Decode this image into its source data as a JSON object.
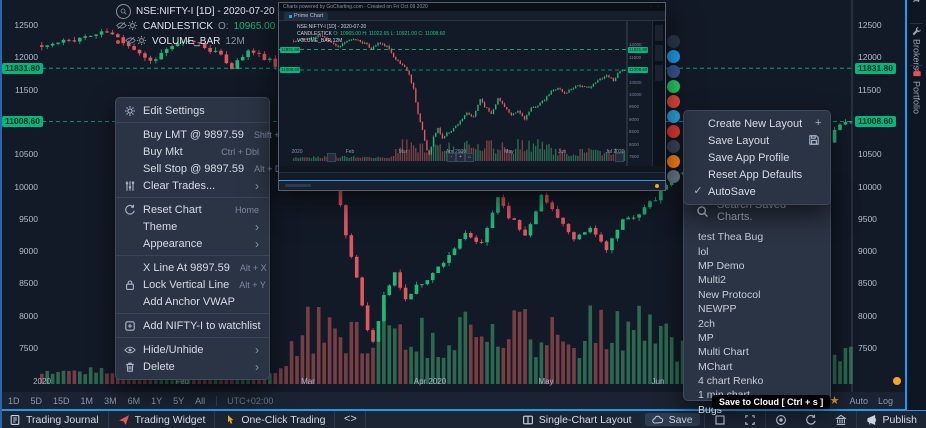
{
  "legend": {
    "symbol_line": "NSE:NIFTY-I [1D] - 2020-07-20",
    "study1_name": "CANDLESTICK",
    "o_label": "O:",
    "o_value": "10965.00",
    "h_label": "H:",
    "h_value": "11022.65",
    "l_label": "L:",
    "l_value": "10921.00",
    "c_label": "C:",
    "c_value": "11008.60",
    "study2_name": "VOLUME_BAR",
    "study2_value": "12M"
  },
  "context_menu": {
    "sections": [
      [
        {
          "icon": "gear",
          "label": "Edit Settings"
        }
      ],
      [
        {
          "label": "Buy LMT @ 9897.59",
          "shortcut": "Shift + Dbl"
        },
        {
          "label": "Buy Mkt",
          "shortcut": "Ctrl + Dbl"
        },
        {
          "label": "Sell Stop @ 9897.59",
          "shortcut": "Alt + Dbl"
        },
        {
          "icon": "sliders",
          "label": "Clear Trades...",
          "submenu": true
        }
      ],
      [
        {
          "icon": "sync",
          "label": "Reset Chart",
          "shortcut": "Home"
        },
        {
          "label": "Theme",
          "submenu": true
        },
        {
          "label": "Appearance",
          "submenu": true
        }
      ],
      [
        {
          "label": "X Line At 9897.59",
          "shortcut": "Alt + X"
        },
        {
          "icon": "lock",
          "label": "Lock Vertical Line",
          "shortcut": "Alt + Y"
        },
        {
          "label": "Add Anchor VWAP"
        }
      ],
      [
        {
          "icon": "watchlist-add",
          "label": "Add NIFTY-I to watchlist"
        }
      ],
      [
        {
          "icon": "eye",
          "label": "Hide/Unhide",
          "submenu": true
        },
        {
          "icon": "trash",
          "label": "Delete",
          "submenu": true
        }
      ]
    ]
  },
  "layout_menu": {
    "items": [
      {
        "label": "Create New Layout",
        "right_icon": "plus"
      },
      {
        "label": "Save Layout",
        "right_icon": "floppy"
      },
      {
        "label": "Save App Profile"
      },
      {
        "label": "Reset App Defaults"
      },
      {
        "label": "AutoSave",
        "checked": true
      }
    ]
  },
  "saved_charts": {
    "search_label": "Search Saved Charts.",
    "items": [
      "test Thea Bug",
      "lol",
      "MP Demo",
      "Multi2",
      "New Protocol",
      "NEWPP",
      "2ch",
      "MP",
      "Multi Chart",
      "MChart",
      "4 chart Renko",
      "1 min chart",
      "Bugs"
    ]
  },
  "share_buttons": [
    {
      "name": "stocktwits",
      "color": "#2c3a4e"
    },
    {
      "name": "twitter",
      "color": "#1da1f2"
    },
    {
      "name": "facebook",
      "color": "#3b5998"
    },
    {
      "name": "whatsapp",
      "color": "#25d366"
    },
    {
      "name": "pinterest",
      "color": "#e74c3c"
    },
    {
      "name": "telegram",
      "color": "#2aa9e0"
    },
    {
      "name": "youtube",
      "color": "#e53935"
    },
    {
      "name": "tumblr",
      "color": "#36465d"
    },
    {
      "name": "reddit",
      "color": "#ff8216"
    },
    {
      "name": "email",
      "color": "#64798a"
    }
  ],
  "preview_popup": {
    "watermark": "Charts powered by GoCharting.com - Created on Fri Oct 09 2020",
    "tab_label": "Prime Chart",
    "legend1": "NSE:NIFTY-I [1D] - 2020-07-20",
    "legend2_name": "CANDLESTICK",
    "legend2_values": "O: 10965.00 H: 11022.65 L: 10921.00 C: 11008.60",
    "legend3": "VOLUME_BAR 12M",
    "months": [
      "2020",
      "Feb",
      "Mar",
      "Apr 2020",
      "May",
      "Jun",
      "Jul 2020"
    ],
    "tags": [
      "11831.80",
      "11008.60"
    ],
    "zoom_controls": [
      "-",
      "+",
      "⌂"
    ]
  },
  "tooltip": {
    "text": "Save to Cloud [ Ctrl + s ]"
  },
  "timeframe_bar": {
    "ranges": [
      "1D",
      "5D",
      "15D",
      "1M",
      "3M",
      "6M",
      "1Y",
      "5Y",
      "All"
    ],
    "timezone": "UTC+02:00",
    "auto_label": "Auto",
    "log_label": "Log"
  },
  "bottom_bar": {
    "left": [
      {
        "icon": "journal",
        "label": "Trading Journal"
      },
      {
        "icon": "dart",
        "label": "Trading Widget",
        "icon_color": "c-red"
      },
      {
        "icon": "pointer",
        "label": "One-Click Trading",
        "icon_color": "c-orange"
      },
      {
        "icon": "code",
        "label": ""
      }
    ],
    "right": [
      {
        "icon": "layout",
        "label": "Single-Chart Layout"
      },
      {
        "icon": "cloud",
        "label": "Save",
        "highlight": true
      },
      {
        "icon": "square",
        "label": "",
        "sep": true
      },
      {
        "icon": "expand",
        "label": ""
      },
      {
        "icon": "camera",
        "label": "",
        "sep": true
      },
      {
        "icon": "sync",
        "label": ""
      },
      {
        "icon": "bank",
        "label": ""
      },
      {
        "icon": "publish",
        "label": "Publish",
        "sep": true
      }
    ]
  },
  "side_tabs": [
    {
      "label": "Watchlist",
      "active": true
    },
    {
      "label": "Brokers",
      "icon": "wrench"
    },
    {
      "label": "Portfolio",
      "icon": "briefcase"
    }
  ],
  "chart_data": {
    "type": "candlestick+volume",
    "symbol": "NSE:NIFTY-I",
    "interval": "1D",
    "last_date": "2020-07-20",
    "ohlc_last": {
      "open": 10965.0,
      "high": 11022.65,
      "low": 10921.0,
      "close": 11008.6
    },
    "volume_last": "12M",
    "price_axis_ticks": [
      12500,
      12000,
      11500,
      10500,
      10000,
      9500,
      9000,
      8500,
      8000,
      7500
    ],
    "price_tags": [
      11831.8,
      11008.6
    ],
    "ylim": [
      7500,
      12500
    ],
    "x_axis_labels": [
      {
        "label": "2020",
        "x": 42
      },
      {
        "label": "Feb",
        "x": 182
      },
      {
        "label": "Mar",
        "x": 308
      },
      {
        "label": "Apr 2020",
        "x": 430
      },
      {
        "label": "May",
        "x": 546
      },
      {
        "label": "Jun",
        "x": 658
      },
      {
        "label": "Jul 2020",
        "x": 770
      }
    ],
    "n_candles": 150,
    "series_anchors": [
      [
        0,
        12160
      ],
      [
        6,
        12280
      ],
      [
        12,
        12390
      ],
      [
        16,
        12200
      ],
      [
        20,
        11940
      ],
      [
        24,
        12180
      ],
      [
        28,
        12250
      ],
      [
        32,
        12080
      ],
      [
        35,
        11850
      ],
      [
        38,
        12100
      ],
      [
        42,
        11950
      ],
      [
        46,
        11450
      ],
      [
        48,
        11250
      ],
      [
        50,
        11150
      ],
      [
        52,
        10800
      ],
      [
        54,
        10250
      ],
      [
        56,
        9250
      ],
      [
        58,
        8550
      ],
      [
        60,
        7780
      ],
      [
        61,
        7610
      ],
      [
        63,
        8300
      ],
      [
        65,
        8650
      ],
      [
        67,
        8250
      ],
      [
        69,
        8450
      ],
      [
        72,
        8650
      ],
      [
        75,
        8950
      ],
      [
        78,
        9250
      ],
      [
        81,
        9100
      ],
      [
        84,
        9850
      ],
      [
        86,
        9550
      ],
      [
        89,
        9250
      ],
      [
        92,
        9850
      ],
      [
        95,
        9550
      ],
      [
        98,
        9150
      ],
      [
        101,
        9350
      ],
      [
        104,
        9050
      ],
      [
        107,
        9450
      ],
      [
        110,
        9600
      ],
      [
        113,
        9800
      ],
      [
        116,
        10150
      ],
      [
        119,
        10300
      ],
      [
        122,
        10050
      ],
      [
        125,
        10250
      ],
      [
        128,
        10400
      ],
      [
        131,
        10300
      ],
      [
        134,
        10350
      ],
      [
        138,
        10650
      ],
      [
        141,
        10800
      ],
      [
        144,
        10600
      ],
      [
        147,
        10950
      ],
      [
        149,
        11008.6
      ]
    ],
    "colors": {
      "up": "#1fb877",
      "down": "#e25561",
      "vol_up": "#2d6e52",
      "vol_down": "#7c4046",
      "tag": "#00b87b",
      "dashed_line": "#00c985"
    }
  }
}
